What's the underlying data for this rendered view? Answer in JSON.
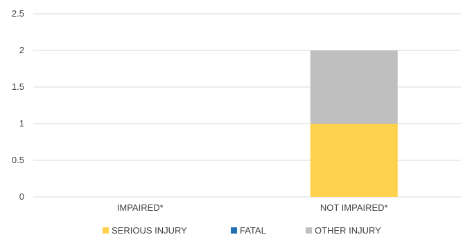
{
  "chart_data": {
    "type": "bar",
    "stacked": true,
    "categories": [
      "IMPAIRED*",
      "NOT IMPAIRED*"
    ],
    "series": [
      {
        "name": "SERIOUS INJURY",
        "values": [
          0,
          1
        ],
        "color": "#FFD24D"
      },
      {
        "name": "FATAL",
        "values": [
          0,
          0
        ],
        "color": "#1F6FB2"
      },
      {
        "name": "OTHER INJURY",
        "values": [
          0,
          1
        ],
        "color": "#BFBFBF"
      }
    ],
    "yticks": [
      "0",
      "0.5",
      "1",
      "1.5",
      "2",
      "2.5"
    ],
    "ylim": [
      0,
      2.5
    ],
    "grid": true,
    "legend": "bottom",
    "title": "",
    "xlabel": "",
    "ylabel": ""
  }
}
